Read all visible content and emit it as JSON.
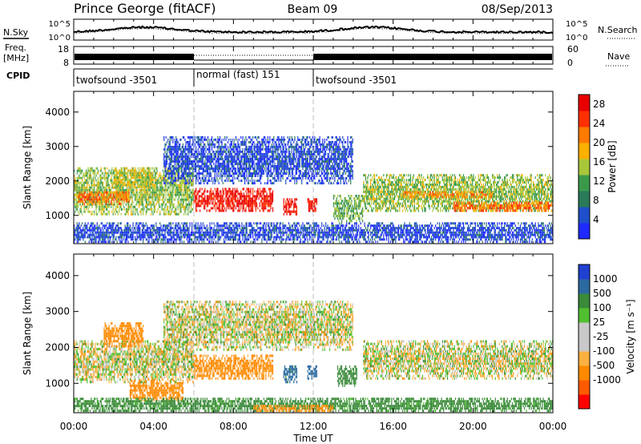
{
  "header": {
    "station": "Prince George (fitACF)",
    "beam": "Beam 09",
    "date": "08/Sep/2013"
  },
  "noise_panel": {
    "left_label": "N.Sky",
    "right_label": "N.Search",
    "ticks": [
      "10^5",
      "10^0"
    ]
  },
  "freq_panel": {
    "left_label_1": "Freq.",
    "left_label_2": "[MHz]",
    "left_ticks": [
      "18",
      "8"
    ],
    "right_label": "Nave",
    "right_ticks": [
      "60",
      "0"
    ]
  },
  "cpid_panel": {
    "label": "CPID",
    "segments": [
      {
        "start_h": 0,
        "end_h": 6,
        "name": "twofsound -3501"
      },
      {
        "start_h": 6,
        "end_h": 12,
        "name": "normal (fast) 151"
      },
      {
        "start_h": 12,
        "end_h": 24,
        "name": "twofsound -3501"
      }
    ]
  },
  "x_axis": {
    "label": "Time UT",
    "ticks": [
      "00:00",
      "04:00",
      "08:00",
      "12:00",
      "16:00",
      "20:00",
      "00:00"
    ]
  },
  "colors": {
    "power_scale": [
      "#1e2aff",
      "#1e4fc8",
      "#2a7a5a",
      "#3a9a4a",
      "#a8c83a",
      "#ffb000",
      "#ff7a00",
      "#ff3000",
      "#e80000"
    ],
    "velocity_scale": [
      "#ff0000",
      "#ff5a00",
      "#ff8a00",
      "#ffb040",
      "#c8c8c8",
      "#c8c8c8",
      "#50c030",
      "#3a8a3a",
      "#2a6aa0",
      "#2040d0"
    ],
    "ground_scatter": "#c0c0c0"
  },
  "chart_data": [
    {
      "type": "heatmap",
      "name": "power",
      "ylabel": "Slant Range [km]",
      "y_ticks": [
        "1000",
        "2000",
        "3000",
        "4000"
      ],
      "ylim": [
        180,
        4600
      ],
      "xlim_hours": [
        0,
        24
      ],
      "colorbar": {
        "label": "Power [dB]",
        "ticks": [
          "4",
          "8",
          "12",
          "16",
          "20",
          "24",
          "28"
        ],
        "range": [
          0,
          30
        ]
      },
      "regions": [
        {
          "t0": 0.0,
          "t1": 6.0,
          "r0": 1000,
          "r1": 2400,
          "level": 14
        },
        {
          "t0": 0.2,
          "t1": 2.8,
          "r0": 1300,
          "r1": 1700,
          "level": 22
        },
        {
          "t0": 2.0,
          "t1": 4.0,
          "r0": 1800,
          "r1": 2400,
          "level": 16
        },
        {
          "t0": 6.0,
          "t1": 10.0,
          "r0": 1100,
          "r1": 1800,
          "level": 28
        },
        {
          "t0": 10.5,
          "t1": 11.2,
          "r0": 1000,
          "r1": 1500,
          "level": 28
        },
        {
          "t0": 11.7,
          "t1": 12.2,
          "r0": 1100,
          "r1": 1500,
          "level": 28
        },
        {
          "t0": 13.0,
          "t1": 14.5,
          "r0": 800,
          "r1": 1600,
          "level": 12
        },
        {
          "t0": 14.5,
          "t1": 24.0,
          "r0": 1100,
          "r1": 2200,
          "level": 14
        },
        {
          "t0": 16.5,
          "t1": 21.0,
          "r0": 1500,
          "r1": 1700,
          "level": 20
        },
        {
          "t0": 19.0,
          "t1": 24.0,
          "r0": 1100,
          "r1": 1400,
          "level": 22
        },
        {
          "t0": 4.5,
          "t1": 14.0,
          "r0": 1900,
          "r1": 3300,
          "level": 4
        },
        {
          "t0": 0.0,
          "t1": 24.0,
          "r0": 200,
          "r1": 800,
          "level": 4
        }
      ]
    },
    {
      "type": "heatmap",
      "name": "velocity",
      "ylabel": "Slant Range [km]",
      "y_ticks": [
        "1000",
        "2000",
        "3000",
        "4000"
      ],
      "ylim": [
        180,
        4600
      ],
      "xlim_hours": [
        0,
        24
      ],
      "colorbar": {
        "label": "Velocity [m s⁻¹]",
        "ticks": [
          "1000",
          "500",
          "100",
          "25",
          "-25",
          "-100",
          "-500",
          "-1000"
        ],
        "range": [
          -1000,
          1000
        ]
      },
      "regions": [
        {
          "t0": 0.0,
          "t1": 6.0,
          "r0": 1000,
          "r1": 2200,
          "level": 0
        },
        {
          "t0": 1.5,
          "t1": 3.5,
          "r0": 2000,
          "r1": 2700,
          "level": -300
        },
        {
          "t0": 2.8,
          "t1": 5.5,
          "r0": 500,
          "r1": 1100,
          "level": -300
        },
        {
          "t0": 6.0,
          "t1": 10.0,
          "r0": 1100,
          "r1": 1800,
          "level": -200
        },
        {
          "t0": 10.5,
          "t1": 11.2,
          "r0": 1000,
          "r1": 1500,
          "level": 600
        },
        {
          "t0": 11.7,
          "t1": 12.2,
          "r0": 1100,
          "r1": 1500,
          "level": 800
        },
        {
          "t0": 13.2,
          "t1": 14.2,
          "r0": 900,
          "r1": 1500,
          "level": 300
        },
        {
          "t0": 4.5,
          "t1": 14.0,
          "r0": 1900,
          "r1": 3300,
          "level": 0
        },
        {
          "t0": 14.5,
          "t1": 24.0,
          "r0": 1100,
          "r1": 2200,
          "level": 0
        },
        {
          "t0": 0.0,
          "t1": 24.0,
          "r0": 200,
          "r1": 600,
          "level": 200
        },
        {
          "t0": 9.0,
          "t1": 13.0,
          "r0": 200,
          "r1": 400,
          "level": -150
        }
      ]
    }
  ]
}
